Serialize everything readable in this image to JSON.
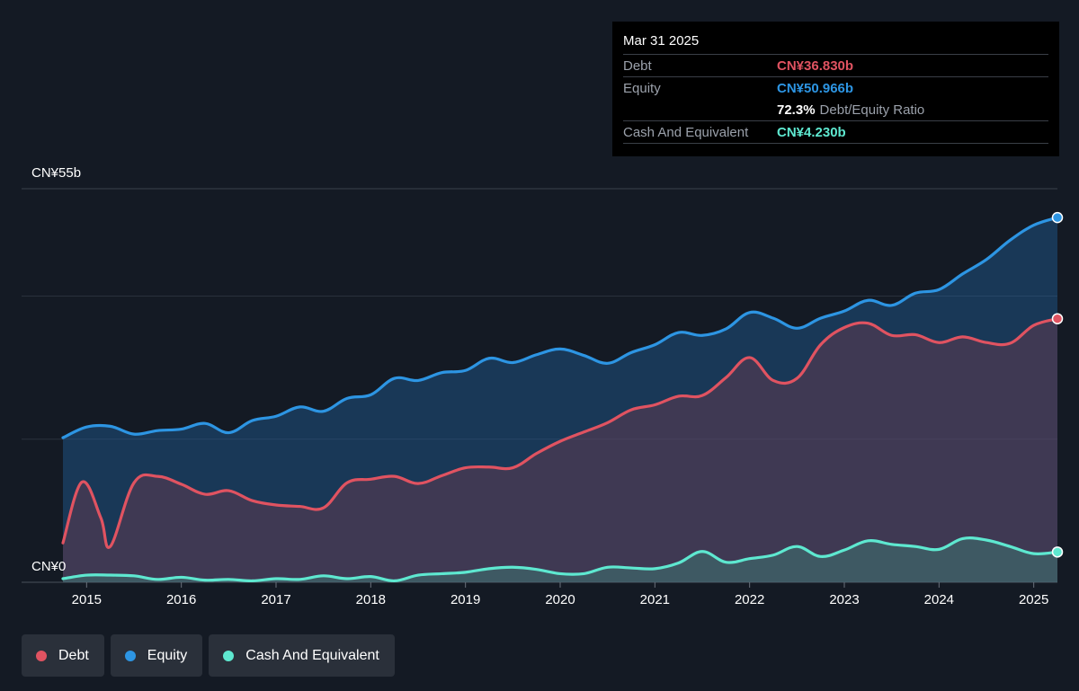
{
  "tooltip": {
    "date": "Mar 31 2025",
    "debt_label": "Debt",
    "debt_value": "CN¥36.830b",
    "equity_label": "Equity",
    "equity_value": "CN¥50.966b",
    "ratio_value": "72.3%",
    "ratio_label": "Debt/Equity Ratio",
    "cash_label": "Cash And Equivalent",
    "cash_value": "CN¥4.230b"
  },
  "legend": [
    {
      "label": "Debt",
      "color": "#e05361"
    },
    {
      "label": "Equity",
      "color": "#2d95e3"
    },
    {
      "label": "Cash And Equivalent",
      "color": "#5ee8d0"
    }
  ],
  "chart_data": {
    "type": "area",
    "y_axis_labels": {
      "top": "CN¥55b",
      "bottom": "CN¥0"
    },
    "ylim": [
      0,
      55
    ],
    "xlim": [
      2014.75,
      2025.25
    ],
    "x_ticks": [
      "2015",
      "2016",
      "2017",
      "2018",
      "2019",
      "2020",
      "2021",
      "2022",
      "2023",
      "2024",
      "2025"
    ],
    "colors": {
      "debt": "#e05361",
      "equity": "#2d95e3",
      "cash": "#5ee8d0"
    },
    "series": [
      {
        "name": "Equity",
        "x": [
          2014.75,
          2015.0,
          2015.25,
          2015.5,
          2015.75,
          2016.0,
          2016.25,
          2016.5,
          2016.75,
          2017.0,
          2017.25,
          2017.5,
          2017.75,
          2018.0,
          2018.25,
          2018.5,
          2018.75,
          2019.0,
          2019.25,
          2019.5,
          2019.75,
          2020.0,
          2020.25,
          2020.5,
          2020.75,
          2021.0,
          2021.25,
          2021.5,
          2021.75,
          2022.0,
          2022.25,
          2022.5,
          2022.75,
          2023.0,
          2023.25,
          2023.5,
          2023.75,
          2024.0,
          2024.25,
          2024.5,
          2024.75,
          2025.0,
          2025.25
        ],
        "values": [
          20.2,
          21.7,
          21.8,
          20.7,
          21.2,
          21.4,
          22.2,
          20.9,
          22.6,
          23.2,
          24.5,
          23.9,
          25.7,
          26.2,
          28.5,
          28.2,
          29.3,
          29.6,
          31.3,
          30.7,
          31.8,
          32.6,
          31.7,
          30.6,
          32.1,
          33.2,
          34.9,
          34.5,
          35.4,
          37.7,
          36.9,
          35.5,
          36.9,
          37.9,
          39.4,
          38.7,
          40.4,
          40.9,
          43.1,
          45.1,
          47.8,
          49.9,
          50.966
        ]
      },
      {
        "name": "Debt",
        "x": [
          2014.75,
          2014.95,
          2015.15,
          2015.25,
          2015.5,
          2015.75,
          2016.0,
          2016.25,
          2016.5,
          2016.75,
          2017.0,
          2017.25,
          2017.5,
          2017.75,
          2018.0,
          2018.25,
          2018.5,
          2018.75,
          2019.0,
          2019.25,
          2019.5,
          2019.75,
          2020.0,
          2020.25,
          2020.5,
          2020.75,
          2021.0,
          2021.25,
          2021.5,
          2021.75,
          2022.0,
          2022.25,
          2022.5,
          2022.75,
          2023.0,
          2023.25,
          2023.5,
          2023.75,
          2024.0,
          2024.25,
          2024.5,
          2024.75,
          2025.0,
          2025.25
        ],
        "values": [
          5.5,
          14.0,
          9.0,
          5.0,
          13.9,
          14.8,
          13.7,
          12.3,
          12.8,
          11.4,
          10.8,
          10.6,
          10.4,
          13.9,
          14.4,
          14.8,
          13.8,
          14.9,
          16.0,
          16.1,
          16.0,
          18.0,
          19.7,
          21.0,
          22.3,
          24.1,
          24.8,
          26.0,
          26.1,
          28.6,
          31.4,
          28.2,
          28.5,
          33.2,
          35.6,
          36.2,
          34.5,
          34.6,
          33.5,
          34.3,
          33.5,
          33.4,
          35.9,
          36.83
        ]
      },
      {
        "name": "Cash And Equivalent",
        "x": [
          2014.75,
          2015.0,
          2015.25,
          2015.5,
          2015.75,
          2016.0,
          2016.25,
          2016.5,
          2016.75,
          2017.0,
          2017.25,
          2017.5,
          2017.75,
          2018.0,
          2018.25,
          2018.5,
          2018.75,
          2019.0,
          2019.25,
          2019.5,
          2019.75,
          2020.0,
          2020.25,
          2020.5,
          2020.75,
          2021.0,
          2021.25,
          2021.5,
          2021.75,
          2022.0,
          2022.25,
          2022.5,
          2022.75,
          2023.0,
          2023.25,
          2023.5,
          2023.75,
          2024.0,
          2024.25,
          2024.5,
          2024.75,
          2025.0,
          2025.25
        ],
        "values": [
          0.5,
          1.0,
          1.0,
          0.9,
          0.4,
          0.7,
          0.3,
          0.4,
          0.2,
          0.5,
          0.4,
          0.9,
          0.5,
          0.8,
          0.2,
          1.0,
          1.2,
          1.4,
          1.9,
          2.1,
          1.8,
          1.2,
          1.2,
          2.1,
          2.0,
          1.9,
          2.7,
          4.3,
          2.8,
          3.3,
          3.8,
          5.0,
          3.6,
          4.5,
          5.8,
          5.3,
          5.0,
          4.6,
          6.1,
          5.9,
          5.0,
          4.0,
          4.23
        ]
      }
    ]
  }
}
